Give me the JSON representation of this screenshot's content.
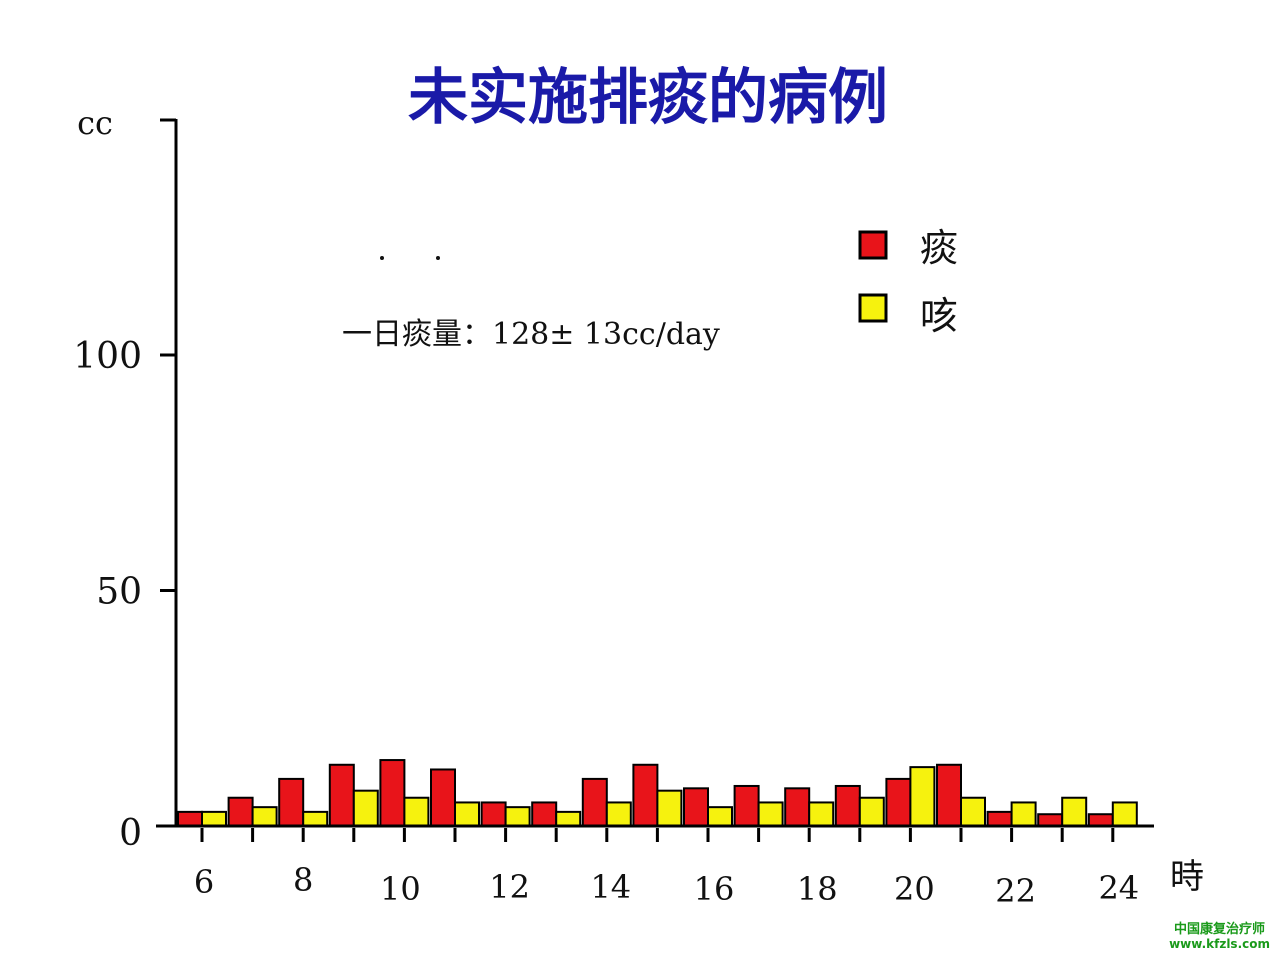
{
  "chart_data": {
    "type": "bar",
    "title": "未实施排痰的病例",
    "ylabel": "cc",
    "xlabel": "時",
    "ylim": [
      0,
      150
    ],
    "yticks": [
      0,
      50,
      100
    ],
    "ytick_labels": [
      "0",
      "50",
      "100"
    ],
    "xtick_labels": [
      "6",
      "8",
      "10",
      "12",
      "14",
      "16",
      "18",
      "20",
      "22",
      "24"
    ],
    "categories": [
      6,
      7,
      8,
      9,
      10,
      11,
      12,
      13,
      14,
      15,
      16,
      17,
      18,
      19,
      20,
      21,
      22,
      23,
      24
    ],
    "series": [
      {
        "name": "痰",
        "color": "#e8141a",
        "values": [
          3,
          6,
          10,
          13,
          14,
          12,
          5,
          5,
          10,
          13,
          8,
          8.5,
          8,
          8.5,
          10,
          13,
          3,
          2.5,
          2.5
        ]
      },
      {
        "name": "咳",
        "color": "#f6f20e",
        "values": [
          3,
          4,
          3,
          7.5,
          6,
          5,
          4,
          3,
          5,
          7.5,
          4,
          5,
          5,
          6,
          12.5,
          6,
          5,
          6,
          5
        ]
      }
    ],
    "annotation": "一日痰量：128± 13cc/day",
    "grid": false,
    "legend_position": "top-right"
  },
  "watermark": {
    "line1": "中国康复治疗师",
    "line2": "www.kfzls.com"
  }
}
